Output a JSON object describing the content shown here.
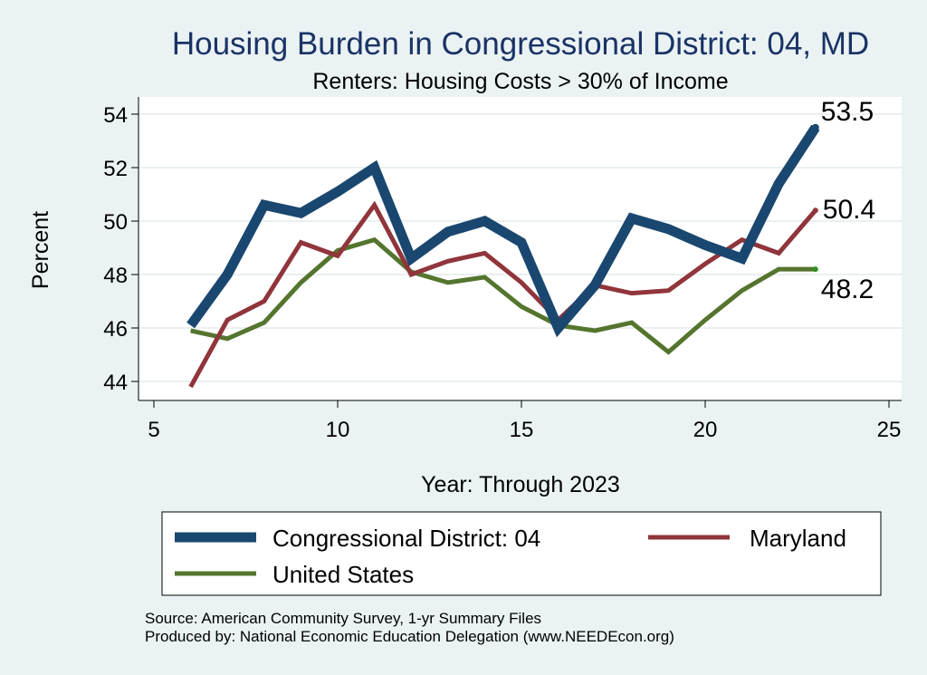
{
  "chart_data": {
    "type": "line",
    "title": "Housing Burden in Congressional District:  04, MD",
    "subtitle": "Renters: Housing Costs > 30% of Income",
    "xlabel": "Year: Through 2023",
    "ylabel": "Percent",
    "xlim": [
      5,
      25
    ],
    "ylim": [
      43.5,
      54.5
    ],
    "xticks": [
      5,
      10,
      15,
      20,
      25
    ],
    "yticks": [
      44,
      46,
      48,
      50,
      52,
      54
    ],
    "grid": true,
    "legend_position": "bottom",
    "series": [
      {
        "name": "Congressional District:  04",
        "color": "#1a476f",
        "x": [
          6,
          7,
          8,
          9,
          10,
          11,
          12,
          13,
          14,
          15,
          16,
          17,
          18,
          19,
          20,
          21,
          22,
          23
        ],
        "values": [
          46.1,
          48.0,
          50.6,
          50.3,
          51.1,
          52.0,
          48.6,
          49.6,
          50.0,
          49.2,
          46.0,
          47.6,
          50.1,
          49.7,
          49.1,
          48.6,
          51.4,
          53.5
        ],
        "end_label": "53.5"
      },
      {
        "name": "Maryland",
        "color": "#90353b",
        "x": [
          6,
          7,
          8,
          9,
          10,
          11,
          12,
          13,
          14,
          15,
          16,
          17,
          18,
          19,
          20,
          21,
          22,
          23
        ],
        "values": [
          43.8,
          46.3,
          47.0,
          49.2,
          48.7,
          50.6,
          48.0,
          48.5,
          48.8,
          47.7,
          46.3,
          47.6,
          47.3,
          47.4,
          48.4,
          49.3,
          48.8,
          50.4
        ],
        "end_label": "50.4"
      },
      {
        "name": "United States",
        "color": "#55752f",
        "x": [
          6,
          7,
          8,
          9,
          10,
          11,
          12,
          13,
          14,
          15,
          16,
          17,
          18,
          19,
          20,
          21,
          22,
          23
        ],
        "values": [
          45.9,
          45.6,
          46.2,
          47.7,
          48.9,
          49.3,
          48.1,
          47.7,
          47.9,
          46.8,
          46.1,
          45.9,
          46.2,
          45.1,
          46.3,
          47.4,
          48.2,
          48.2
        ],
        "end_label": "48.2"
      }
    ]
  },
  "source_line": "Source: American Community Survey, 1-yr Summary Files",
  "produced_line": "Produced by: National Economic Education Delegation (www.NEEDEcon.org)"
}
